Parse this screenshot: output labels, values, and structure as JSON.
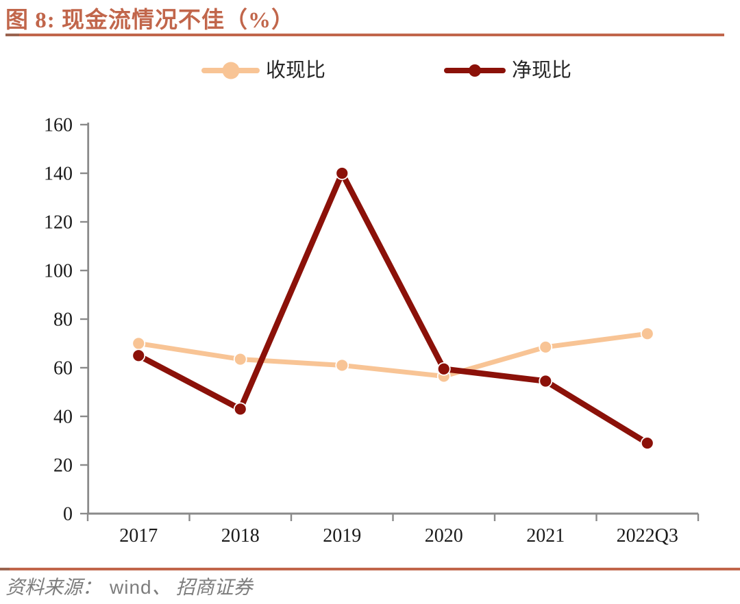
{
  "figure": {
    "title": "图 8: 现金流情况不佳（%）",
    "title_color": "#C1664B",
    "rule_accent_color": "#9A6450",
    "source_prefix": "资料来源：",
    "source_vendor": "wind",
    "source_suffix": "、 招商证券",
    "source_color": "#7D7D7D"
  },
  "chart_data": {
    "type": "line",
    "title": "现金流情况不佳（%）",
    "categories": [
      "2017",
      "2018",
      "2019",
      "2020",
      "2021",
      "2022Q3"
    ],
    "series": [
      {
        "name": "收现比",
        "color": "#F8C495",
        "values": [
          70,
          63.5,
          61,
          56.5,
          68.5,
          74
        ]
      },
      {
        "name": "净现比",
        "color": "#8B1109",
        "values": [
          65,
          43,
          140,
          59.5,
          54.5,
          29
        ]
      }
    ],
    "xlabel": "",
    "ylabel": "",
    "ylim": [
      0,
      160
    ],
    "ytick_step": 20,
    "grid": false,
    "legend_position": "top-center",
    "axis_color": "#8A8A8A",
    "tick_label_color": "#1A1A1A"
  }
}
